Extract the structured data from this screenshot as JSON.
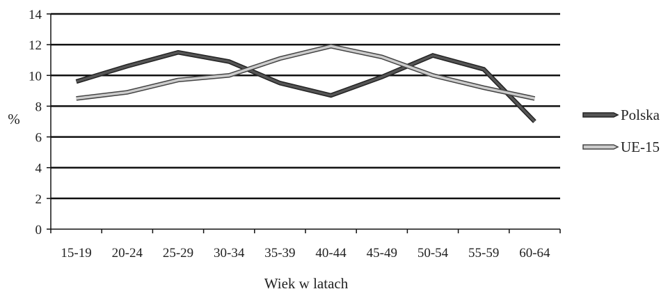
{
  "chart_data": {
    "type": "line",
    "title": "",
    "xlabel": "Wiek w latach",
    "ylabel": "%",
    "categories": [
      "15-19",
      "20-24",
      "25-29",
      "30-34",
      "35-39",
      "40-44",
      "45-49",
      "50-54",
      "55-59",
      "60-64"
    ],
    "ylim": [
      0,
      14
    ],
    "yticks": [
      0,
      2,
      4,
      6,
      8,
      10,
      12,
      14
    ],
    "grid": true,
    "legend_position": "right",
    "series": [
      {
        "name": "Polska",
        "values": [
          9.6,
          10.6,
          11.5,
          10.9,
          9.5,
          8.7,
          9.9,
          11.3,
          10.4,
          7.0
        ],
        "color": "#555555",
        "edge": "#222222"
      },
      {
        "name": "UE-15",
        "values": [
          8.5,
          8.9,
          9.7,
          10.0,
          11.1,
          11.9,
          11.2,
          10.0,
          9.2,
          8.5
        ],
        "color": "#cccccc",
        "edge": "#444444"
      }
    ]
  }
}
